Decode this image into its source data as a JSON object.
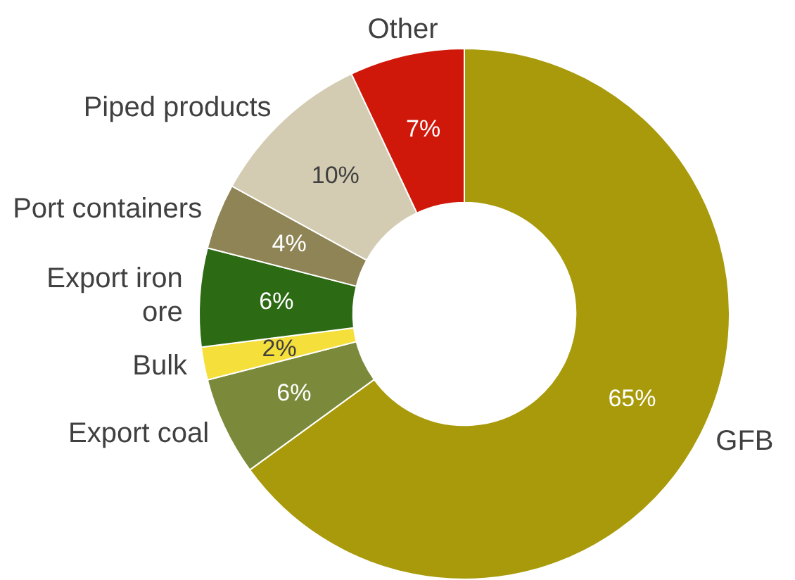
{
  "chart_data": {
    "type": "donut",
    "categories": [
      "GFB",
      "Export coal",
      "Bulk",
      "Export iron ore",
      "Port containers",
      "Piped products",
      "Other"
    ],
    "values": [
      65,
      6,
      2,
      6,
      4,
      10,
      7
    ],
    "value_labels": [
      "65%",
      "6%",
      "2%",
      "6%",
      "4%",
      "10%",
      "7%"
    ],
    "colors": [
      "#a89a0a",
      "#7a8a3a",
      "#f5df3a",
      "#2d6a14",
      "#8e8456",
      "#d3ccb2",
      "#d0180a"
    ],
    "legend": false
  }
}
